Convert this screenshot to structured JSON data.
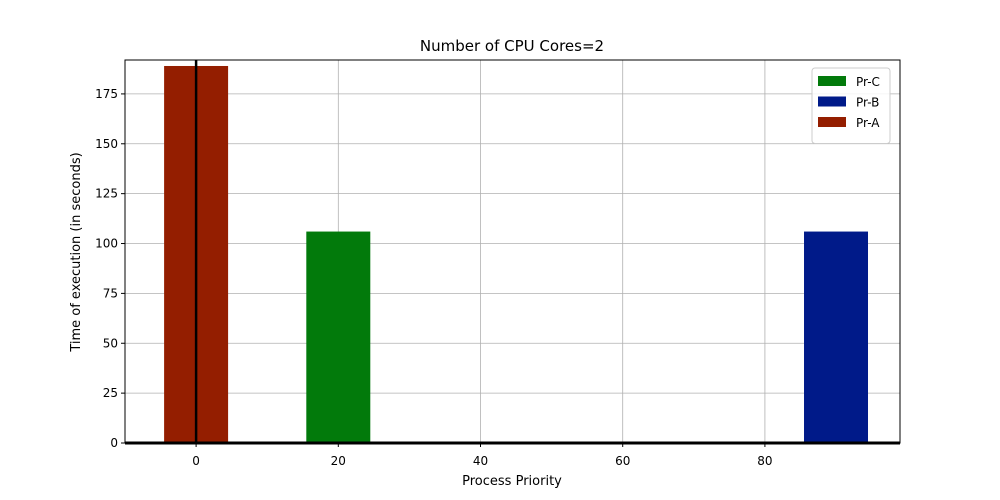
{
  "chart_data": {
    "type": "bar",
    "title": "Number of CPU Cores=2",
    "xlabel": "Process Priority",
    "ylabel": "Time of execution (in seconds)",
    "xlim": [
      -10,
      99
    ],
    "ylim": [
      0,
      192
    ],
    "xticks": [
      0,
      20,
      40,
      60,
      80
    ],
    "yticks": [
      0,
      25,
      50,
      75,
      100,
      125,
      150,
      175
    ],
    "bar_width": 9,
    "grid": true,
    "legend_position": "top-right",
    "series": [
      {
        "name": "Pr-C",
        "color": "#027a0b",
        "x": [
          20
        ],
        "values": [
          106
        ]
      },
      {
        "name": "Pr-B",
        "color": "#001a89",
        "x": [
          90
        ],
        "values": [
          106
        ]
      },
      {
        "name": "Pr-A",
        "color": "#941e00",
        "x": [
          0
        ],
        "values": [
          189
        ]
      }
    ]
  }
}
